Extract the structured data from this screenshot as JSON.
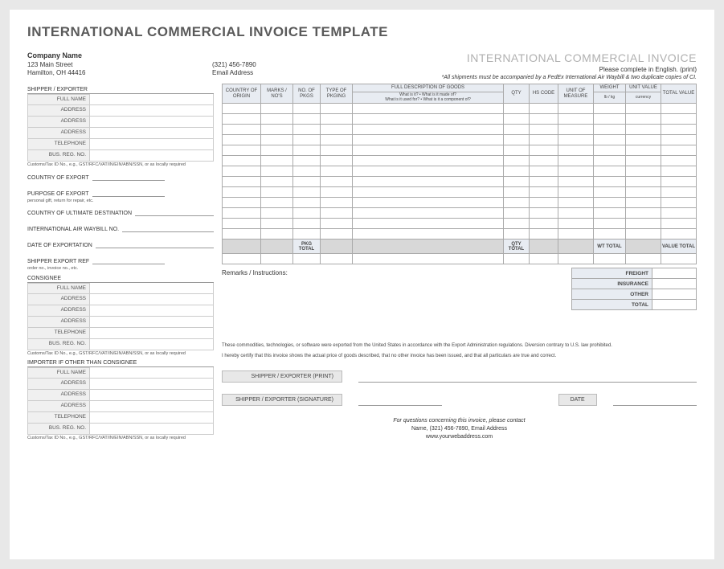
{
  "title": "INTERNATIONAL COMMERCIAL INVOICE TEMPLATE",
  "doc_title": "INTERNATIONAL COMMERCIAL INVOICE",
  "company": {
    "name": "Company Name",
    "street": "123 Main Street",
    "city": "Hamilton, OH  44416"
  },
  "contact": {
    "phone": "(321) 456-7890",
    "email": "Email Address"
  },
  "instruction": "Please complete in English. (print)",
  "note": "*All shipments must be accompanied by a FedEx International Air Waybill & two duplicate copies of CI.",
  "shipper": {
    "header": "SHIPPER / EXPORTER",
    "fields": [
      "FULL NAME",
      "ADDRESS",
      "ADDRESS",
      "ADDRESS",
      "TELEPHONE",
      "BUS. REG. NO."
    ],
    "micro": "Customs/Tax ID No., e.g., GST/RFC/VAT/IN/EIN/ABN/SSN, or as locally required"
  },
  "export_fields": {
    "country_export": "COUNTRY OF EXPORT",
    "purpose": "PURPOSE OF EXPORT",
    "purpose_micro": "personal gift, return for repair, etc.",
    "ultimate_dest": "COUNTRY OF ULTIMATE DESTINATION",
    "waybill": "INTERNATIONAL AIR WAYBILL NO.",
    "date_exportation": "DATE OF EXPORTATION",
    "shipper_ref": "SHIPPER EXPORT REF",
    "shipper_ref_micro": "order no., invoice no., etc."
  },
  "consignee": {
    "header": "CONSIGNEE",
    "fields": [
      "FULL NAME",
      "ADDRESS",
      "ADDRESS",
      "ADDRESS",
      "TELEPHONE",
      "BUS. REG. NO."
    ],
    "micro": "Customs/Tax ID No., e.g., GST/RFC/VAT/IN/EIN/ABN/SSN, or as locally required"
  },
  "importer": {
    "header": "IMPORTER IF OTHER THAN CONSIGNEE",
    "fields": [
      "FULL NAME",
      "ADDRESS",
      "ADDRESS",
      "ADDRESS",
      "TELEPHONE",
      "BUS. REG. NO."
    ],
    "micro": "Customs/Tax ID No., e.g., GST/RFC/VAT/IN/EIN/ABN/SSN, or as locally required"
  },
  "goods_table": {
    "headers": {
      "country": "COUNTRY OF ORIGIN",
      "marks": "MARKS / NO'S",
      "no_pkgs": "NO. OF PKGS",
      "type_pkg": "TYPE OF PKGING",
      "full_desc": "FULL DESCRIPTION OF GOODS",
      "full_desc_sub": "What is it? • What is it made of?\nWhat is it used for? • What is it a component of?",
      "qty": "QTY",
      "hs": "HS CODE",
      "uom": "UNIT OF MEASURE",
      "weight": "WEIGHT",
      "weight_sub": "lb / kg",
      "unit_val": "UNIT VALUE",
      "unit_val_sub": "currency",
      "total_val": "TOTAL VALUE"
    },
    "row_count": 13,
    "summary": {
      "pkg_total": "PKG TOTAL",
      "qty_total": "QTY TOTAL",
      "wt_total": "WT TOTAL",
      "value_total": "VALUE TOTAL"
    }
  },
  "remarks_label": "Remarks / Instructions:",
  "totals": {
    "freight": "FREIGHT",
    "insurance": "INSURANCE",
    "other": "OTHER",
    "total": "TOTAL"
  },
  "legal": {
    "line1": "These commodities, technologies, or software were exported from the United States in accordance with the Export Administration regulations. Diversion contrary to U.S. law prohibited.",
    "line2": "I hereby certify that this invoice shows the actual price of goods described, that no other invoice has been issued, and that all particulars are true and correct."
  },
  "signatures": {
    "print": "SHIPPER / EXPORTER (PRINT)",
    "sign": "SHIPPER / EXPORTER (SIGNATURE)",
    "date": "DATE"
  },
  "footer": {
    "line1": "For questions concerning this invoice, please contact",
    "line2": "Name, (321) 456-7890, Email Address",
    "line3": "www.yourwebaddress.com"
  },
  "colors": {
    "page_bg": "#ffffff",
    "outer_bg": "#e8e8e8",
    "header_cell_bg": "#e8ecf2",
    "field_label_bg": "#f0f0f0",
    "summary_bg": "#d8d8d8",
    "border": "#aaaaaa",
    "title_color": "#5a5a5a",
    "doctitle_color": "#b0b0b0"
  }
}
